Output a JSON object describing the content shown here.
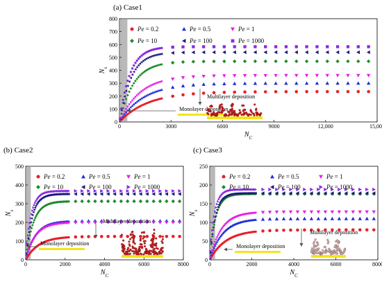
{
  "chart_data": [
    {
      "type": "scatter",
      "title": "(a) Case1",
      "xlabel": "N_C",
      "ylabel": "N_s",
      "xlim": [
        0,
        15000
      ],
      "ylim": [
        0,
        800
      ],
      "xticks": [
        0,
        3000,
        6000,
        9000,
        12000,
        15000
      ],
      "xtick_labels": [
        "0",
        "3000",
        "6000",
        "9000",
        "12,000",
        "15,000"
      ],
      "yticks": [
        0,
        100,
        200,
        300,
        400,
        500,
        600,
        700,
        800
      ],
      "ytick_labels": [
        "0",
        "100",
        "200",
        "300",
        "400",
        "500",
        "600",
        "700",
        "800"
      ],
      "legend_placement": "top",
      "annotations": {
        "monolayer": "Monolayer deposition",
        "multilayer": "Multilayer deposition"
      },
      "series": [
        {
          "name": "Pe = 0.2",
          "marker": "circle",
          "color": "#e8202a",
          "plateau": 235,
          "rise": 3000,
          "x_end": 15000,
          "sparse_step": 600
        },
        {
          "name": "Pe = 0.5",
          "marker": "triangle-up",
          "color": "#1f2ed8",
          "plateau": 300,
          "rise": 2500,
          "x_end": 15000,
          "sparse_step": 600
        },
        {
          "name": "Pe = 1",
          "marker": "triangle-down",
          "color": "#e61ee6",
          "plateau": 360,
          "rise": 2200,
          "x_end": 15000,
          "sparse_step": 600
        },
        {
          "name": "Pe = 10",
          "marker": "diamond",
          "color": "#1e8c2a",
          "plateau": 470,
          "rise": 1500,
          "x_end": 15000,
          "sparse_step": 600
        },
        {
          "name": "Pe = 100",
          "marker": "triangle-left",
          "color": "#1a1a7a",
          "plateau": 540,
          "rise": 1200,
          "x_end": 15000,
          "sparse_step": 600
        },
        {
          "name": "Pe = 1000",
          "marker": "square",
          "color": "#8a2be2",
          "plateau": 583,
          "rise": 1100,
          "x_end": 15000,
          "sparse_step": 600
        }
      ]
    },
    {
      "type": "scatter",
      "title": "(b) Case2",
      "xlabel": "N_C",
      "ylabel": "N_s",
      "xlim": [
        0,
        8000
      ],
      "ylim": [
        0,
        500
      ],
      "xticks": [
        0,
        2000,
        4000,
        6000,
        8000
      ],
      "xtick_labels": [
        "0",
        "2000",
        "4000",
        "6000",
        "8000"
      ],
      "yticks": [
        0,
        100,
        200,
        300,
        400,
        500
      ],
      "ytick_labels": [
        "0",
        "100",
        "200",
        "300",
        "400",
        "500"
      ],
      "legend_placement": "top",
      "annotations": {
        "monolayer": "Monolayer deposition",
        "multilayer": "Multilayer deposition"
      },
      "series": [
        {
          "name": "Pe = 0.2",
          "marker": "circle",
          "color": "#e8202a",
          "plateau": 125,
          "rise": 1200,
          "x_end": 8000,
          "sparse_step": 330
        },
        {
          "name": "Pe = 0.5",
          "marker": "triangle-up",
          "color": "#1f2ed8",
          "plateau": 208,
          "rise": 900,
          "x_end": 8000,
          "sparse_step": 330
        },
        {
          "name": "Pe = 1",
          "marker": "triangle-down",
          "color": "#e61ee6",
          "plateau": 200,
          "rise": 900,
          "x_end": 8000,
          "sparse_step": 330
        },
        {
          "name": "Pe = 10",
          "marker": "diamond",
          "color": "#1e8c2a",
          "plateau": 313,
          "rise": 700,
          "x_end": 8000,
          "sparse_step": 330
        },
        {
          "name": "Pe = 100",
          "marker": "triangle-left",
          "color": "#1a1a7a",
          "plateau": 352,
          "rise": 550,
          "x_end": 8000,
          "sparse_step": 330
        },
        {
          "name": "Pe = 1000",
          "marker": "triangle-right",
          "color": "#8a2be2",
          "plateau": 368,
          "rise": 500,
          "x_end": 8000,
          "sparse_step": 330
        }
      ]
    },
    {
      "type": "scatter",
      "title": "(c) Case3",
      "xlabel": "N_C",
      "ylabel": "N_s",
      "xlim": [
        0,
        8000
      ],
      "ylim": [
        0,
        250
      ],
      "xticks": [
        0,
        2000,
        4000,
        6000,
        8000
      ],
      "xtick_labels": [
        "0",
        "2000",
        "4000",
        "6000",
        "8000"
      ],
      "yticks": [
        0,
        50,
        100,
        150,
        200,
        250
      ],
      "ytick_labels": [
        "0",
        "50",
        "100",
        "150",
        "200",
        "250"
      ],
      "legend_placement": "top",
      "annotations": {
        "monolayer": "Monolayer deposition",
        "multilayer": "Multilayer deposition"
      },
      "series": [
        {
          "name": "Pe = 0.2",
          "marker": "circle",
          "color": "#e8202a",
          "plateau": 80,
          "rise": 1400,
          "x_end": 8000,
          "sparse_step": 330
        },
        {
          "name": "Pe = 0.5",
          "marker": "triangle-up",
          "color": "#1f2ed8",
          "plateau": 110,
          "rise": 1100,
          "x_end": 8000,
          "sparse_step": 330
        },
        {
          "name": "Pe = 1",
          "marker": "triangle-down",
          "color": "#e61ee6",
          "plateau": 128,
          "rise": 1000,
          "x_end": 8000,
          "sparse_step": 330
        },
        {
          "name": "Pe = 10",
          "marker": "diamond",
          "color": "#1e8c2a",
          "plateau": 176,
          "rise": 500,
          "x_end": 8000,
          "sparse_step": 330
        },
        {
          "name": "Pe = 100",
          "marker": "triangle-left",
          "color": "#1a1a7a",
          "plateau": 178,
          "rise": 450,
          "x_end": 8000,
          "sparse_step": 330
        },
        {
          "name": "Pe = 1000",
          "marker": "triangle-right",
          "color": "#8a2be2",
          "plateau": 188,
          "rise": 400,
          "x_end": 8000,
          "sparse_step": 330
        }
      ]
    }
  ]
}
